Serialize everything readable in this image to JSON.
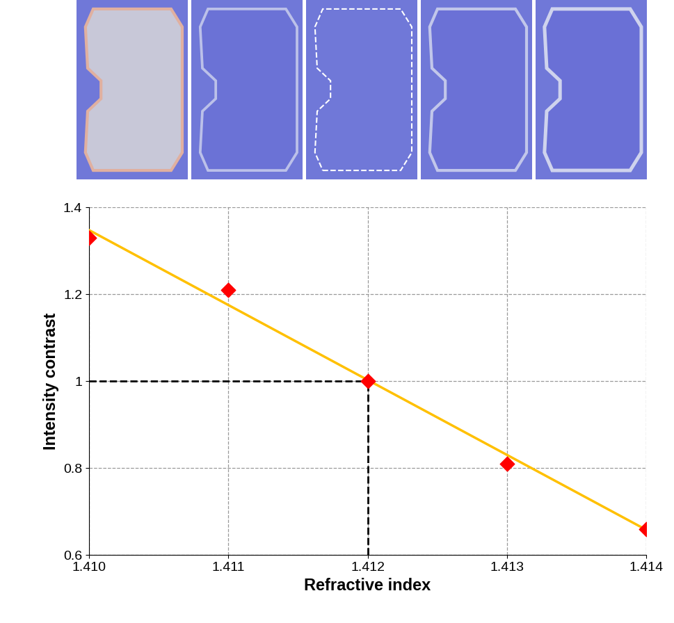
{
  "chart_data": {
    "type": "scatter",
    "x_label": "Refractive index",
    "y_label": "Intensity contrast",
    "xlim": [
      1.41,
      1.414
    ],
    "xticks": [
      {
        "value": 1.41,
        "label": "1.410"
      },
      1.411,
      1.412,
      1.413,
      1.414
    ],
    "ylim": [
      0.6,
      1.4
    ],
    "yticks": [
      0.6,
      0.8,
      1,
      1.2,
      1.4
    ],
    "grid": true,
    "series": [
      {
        "type": "scatter",
        "color": "#ff0000",
        "marker": "diamond",
        "x": [
          1.41,
          1.411,
          1.412,
          1.413,
          1.414
        ],
        "values": [
          1.33,
          1.21,
          1.0,
          0.81,
          0.66
        ]
      },
      {
        "type": "line",
        "color": "#ffc000",
        "line_style": "solid",
        "x": [
          1.41,
          1.414
        ],
        "values": [
          1.348,
          0.658
        ]
      }
    ],
    "reference": {
      "x": 1.412,
      "y": 1,
      "color": "#000000",
      "line_style": "dashed"
    }
  }
}
